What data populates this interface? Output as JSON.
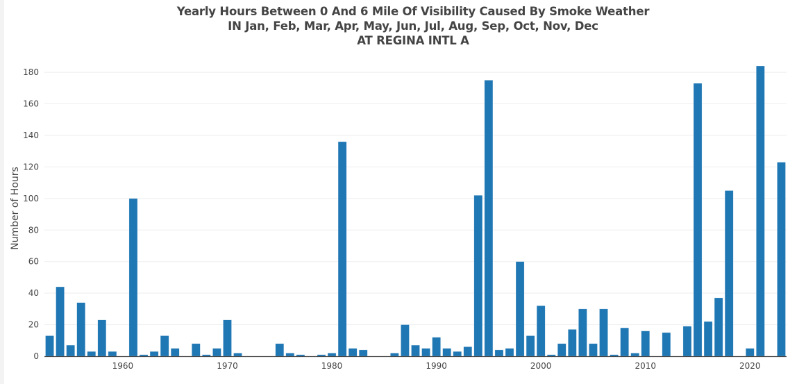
{
  "chart_data": {
    "type": "bar",
    "title": "Yearly Hours Between 0 And 6 Mile Of Visibility Caused By Smoke Weather",
    "subtitle": "IN Jan, Feb, Mar, Apr, May, Jun, Jul, Aug, Sep, Oct, Nov, Dec",
    "subtitle2": "AT REGINA INTL A",
    "xlabel": "",
    "ylabel": "Number of Hours",
    "ylim": [
      0,
      184
    ],
    "xlim": [
      1952.5,
      2023.5
    ],
    "grid": true,
    "legend": null,
    "bar_color": "#1f77b4",
    "x_ticks": [
      1960,
      1970,
      1980,
      1990,
      2000,
      2010,
      2020
    ],
    "y_ticks": [
      0,
      20,
      40,
      60,
      80,
      100,
      120,
      140,
      160,
      180
    ],
    "categories": [
      1953,
      1954,
      1955,
      1956,
      1957,
      1958,
      1959,
      1960,
      1961,
      1962,
      1963,
      1964,
      1965,
      1966,
      1967,
      1968,
      1969,
      1970,
      1971,
      1972,
      1973,
      1974,
      1975,
      1976,
      1977,
      1978,
      1979,
      1980,
      1981,
      1982,
      1983,
      1984,
      1985,
      1986,
      1987,
      1988,
      1989,
      1990,
      1991,
      1992,
      1993,
      1994,
      1995,
      1996,
      1997,
      1998,
      1999,
      2000,
      2001,
      2002,
      2003,
      2004,
      2005,
      2006,
      2007,
      2008,
      2009,
      2010,
      2011,
      2012,
      2013,
      2014,
      2015,
      2016,
      2017,
      2018,
      2019,
      2020,
      2021,
      2022,
      2023
    ],
    "values": [
      13,
      44,
      7,
      34,
      3,
      23,
      3,
      0,
      100,
      1,
      3,
      13,
      5,
      0,
      8,
      1,
      5,
      23,
      2,
      0,
      0,
      0,
      8,
      2,
      1,
      0,
      1,
      2,
      136,
      5,
      4,
      0,
      0,
      2,
      20,
      7,
      5,
      12,
      5,
      3,
      6,
      102,
      175,
      4,
      5,
      60,
      13,
      32,
      1,
      8,
      17,
      30,
      8,
      30,
      1,
      18,
      2,
      16,
      0,
      15,
      0,
      19,
      173,
      22,
      37,
      105,
      0,
      5,
      184,
      0,
      123
    ]
  }
}
